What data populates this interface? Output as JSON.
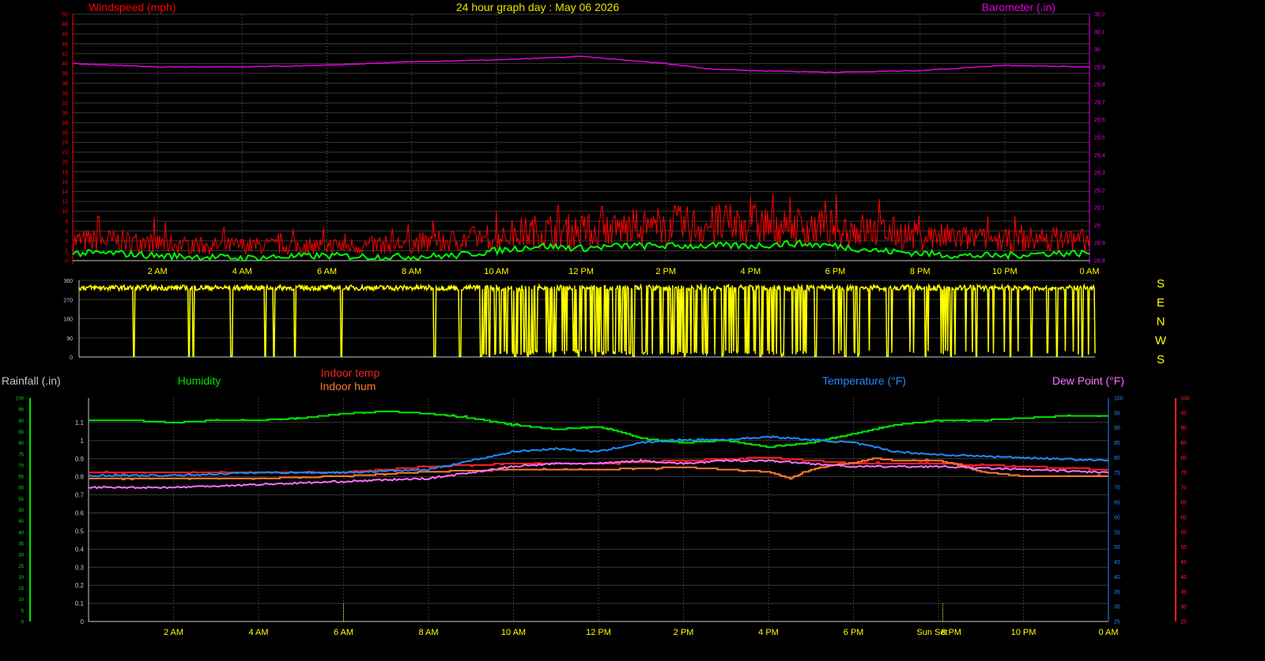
{
  "colors": {
    "background": "#000000",
    "grid": "#3a3a3a",
    "axis": "#c8c8c8",
    "windspeed": "#ff0000",
    "wind_avg": "#00ff00",
    "barometer": "#e600e6",
    "direction": "#ffff00",
    "title": "#e6e600",
    "humidity": "#00e600",
    "indoor_temp": "#ff2020",
    "indoor_hum": "#ff7a2a",
    "temperature": "#1e8cff",
    "dew_point": "#ff70ff",
    "rainfall": "#ffff00",
    "xticks": "#ffff00"
  },
  "chart_data": [
    {
      "type": "line",
      "title": "24 hour graph day : May 06 2026",
      "ylabel": "Windspeed (mph)",
      "y2label": "Barometer (.in)",
      "x_ticks": [
        "2 AM",
        "4 AM",
        "6 AM",
        "8 AM",
        "10 AM",
        "12 PM",
        "2 PM",
        "4 PM",
        "6 PM",
        "8 PM",
        "10 PM",
        "0 AM"
      ],
      "ylim": [
        0,
        50
      ],
      "y_ticks": [
        "0",
        "2",
        "4",
        "6",
        "8",
        "10",
        "12",
        "14",
        "16",
        "18",
        "20",
        "22",
        "24",
        "26",
        "28",
        "30",
        "32",
        "34",
        "36",
        "38",
        "40",
        "42",
        "44",
        "46",
        "48",
        "50"
      ],
      "y2lim": [
        28.8,
        30.2
      ],
      "y2_ticks": [
        "28.8",
        "28.9",
        "29",
        "29.1",
        "29.2",
        "29.3",
        "29.4",
        "29.5",
        "29.6",
        "29.7",
        "29.8",
        "29.9",
        "30",
        "30.1",
        "30.2"
      ],
      "series": [
        {
          "name": "Windspeed (mph)",
          "axis": "left",
          "hours": [
            0,
            1,
            2,
            3,
            4,
            5,
            6,
            7,
            8,
            9,
            10,
            11,
            12,
            13,
            14,
            15,
            16,
            17,
            18,
            19,
            20,
            21,
            22,
            23,
            24
          ],
          "values": [
            4,
            4,
            3.5,
            3,
            3,
            3,
            3,
            3,
            3.5,
            4,
            5,
            6,
            6,
            6.5,
            7,
            7,
            7.5,
            7,
            6.5,
            6,
            5,
            4.5,
            4,
            4.5,
            4
          ],
          "peaks": [
            [
              0.6,
              9
            ],
            [
              10,
              10
            ],
            [
              12.5,
              11
            ],
            [
              16,
              13
            ],
            [
              16.8,
              10
            ],
            [
              21.6,
              9
            ]
          ]
        },
        {
          "axis": "left",
          "hours": [
            0,
            1,
            2,
            3,
            4,
            5,
            6,
            7,
            8,
            9,
            10,
            11,
            12,
            13,
            14,
            15,
            16,
            17,
            18,
            19,
            20,
            21,
            22,
            23,
            24
          ],
          "values": [
            1.5,
            1.5,
            1,
            0.8,
            0.5,
            0.8,
            1,
            0.8,
            0.8,
            1,
            2,
            3,
            2.5,
            3,
            3,
            3,
            3,
            3.5,
            3,
            2,
            1.5,
            1,
            1,
            1.5,
            1.5
          ]
        },
        {
          "name": "Barometer (.in)",
          "axis": "right",
          "hours": [
            0,
            2,
            4,
            6,
            8,
            10,
            12,
            13,
            14,
            15,
            16,
            18,
            20,
            22,
            24
          ],
          "values": [
            29.92,
            29.9,
            29.9,
            29.91,
            29.93,
            29.94,
            29.96,
            29.94,
            29.92,
            29.89,
            29.88,
            29.87,
            29.88,
            29.91,
            29.9
          ]
        }
      ]
    },
    {
      "type": "line",
      "y_ticks": [
        "0",
        "90",
        "180",
        "270",
        "360"
      ],
      "ylim": [
        0,
        360
      ],
      "side_labels": [
        "S",
        "E",
        "N",
        "W",
        "S"
      ],
      "series": [
        {
          "axis": "left",
          "base": 325,
          "drop_hours": [
            1.3,
            2.6,
            2.7,
            3.6,
            4.4,
            4.6,
            5.1,
            6.2,
            8.4,
            9.0,
            9.5,
            9.7,
            10.3,
            10.6,
            11.2,
            11.8,
            12.2,
            13.1,
            14.3,
            15.2,
            16.1,
            16.6,
            17.4,
            18.1,
            18.4,
            19.1,
            20.0,
            20.6,
            21.2,
            22.0,
            22.5,
            23.1,
            23.7
          ]
        }
      ]
    },
    {
      "type": "line",
      "x_ticks": [
        "2 AM",
        "4 AM",
        "6 AM",
        "8 AM",
        "10 AM",
        "12 PM",
        "2 PM",
        "4 PM",
        "6 PM",
        "Sun Set",
        "8 PM",
        "10 PM",
        "0 AM"
      ],
      "y_ticks": [
        "0",
        "0.1",
        "0.2",
        "0.3",
        "0.4",
        "0.5",
        "0.6",
        "0.7",
        "0.8",
        "0.9",
        "1",
        "1.1"
      ],
      "ylim": [
        0,
        1.2
      ],
      "y_left2_ticks": [
        "0",
        "5",
        "10",
        "15",
        "20",
        "25",
        "30",
        "35",
        "40",
        "45",
        "50",
        "55",
        "60",
        "65",
        "70",
        "75",
        "80",
        "85",
        "90",
        "95",
        "100"
      ],
      "y2_ticks": [
        "25",
        "30",
        "35",
        "40",
        "45",
        "50",
        "55",
        "60",
        "65",
        "70",
        "75",
        "80",
        "85",
        "90",
        "95",
        "100"
      ],
      "y2lim": [
        25,
        100
      ],
      "y3_ticks": [
        "25",
        "30",
        "35",
        "40",
        "45",
        "50",
        "55",
        "60",
        "65",
        "70",
        "75",
        "80",
        "85",
        "90",
        "95",
        "100"
      ],
      "legend": {
        "rainfall": "Rainfall (.in)",
        "humidity": "Humidity",
        "indoor_temp": "Indoor temp",
        "indoor_hum": "Indoor hum",
        "temperature": "Temperature (°F)",
        "dew_point": "Dew Point (°F)"
      },
      "series": [
        {
          "name": "Humidity",
          "hours": [
            0,
            1,
            2,
            3,
            4,
            5,
            6,
            7,
            8,
            9,
            10,
            11,
            12,
            12.5,
            13,
            14,
            15,
            16,
            16.5,
            17,
            17.5,
            18,
            19,
            20,
            21,
            22,
            23,
            24
          ],
          "values": [
            90,
            90,
            89,
            90,
            90,
            91,
            93,
            94,
            93,
            91,
            88,
            86,
            87,
            85,
            82,
            80,
            81,
            78,
            79,
            80,
            82,
            84,
            88,
            90,
            90,
            91,
            92,
            92
          ]
        },
        {
          "name": "Indoor temp",
          "hours": [
            0,
            2,
            4,
            6,
            8,
            10,
            12,
            14,
            16,
            18,
            20,
            22,
            24
          ],
          "values": [
            75,
            75,
            75,
            75,
            77,
            78,
            78,
            79,
            80,
            78,
            78,
            77,
            76
          ]
        },
        {
          "name": "Indoor hum",
          "hours": [
            0,
            2,
            4,
            6,
            8,
            10,
            12,
            14,
            16,
            16.5,
            17,
            17.5,
            18,
            18.5,
            19,
            20,
            20.5,
            21,
            22,
            24
          ],
          "values": [
            64,
            64,
            64,
            65,
            67,
            68,
            68,
            69,
            67,
            64,
            68,
            70,
            71,
            73,
            72,
            72,
            70,
            67,
            65,
            65
          ]
        },
        {
          "name": "Temperature (°F)",
          "hours": [
            0,
            2,
            4,
            6,
            8,
            9,
            10,
            11,
            12,
            13,
            14,
            15,
            16,
            17,
            18,
            19,
            20,
            22,
            24
          ],
          "values": [
            74,
            74,
            75,
            75,
            76,
            79,
            82,
            83,
            82,
            85,
            86,
            86,
            87,
            86,
            85,
            82,
            81,
            80,
            79
          ]
        },
        {
          "name": "Dew Point (°F)",
          "hours": [
            0,
            2,
            4,
            6,
            8,
            9,
            10,
            11,
            12,
            13,
            14,
            15,
            16,
            17,
            18,
            19,
            20,
            22,
            24
          ],
          "values": [
            70,
            70,
            71,
            72,
            73,
            75,
            77,
            78,
            78,
            79,
            78,
            79,
            79,
            78,
            77,
            77,
            77,
            76,
            75
          ]
        },
        {
          "name": "Rainfall (.in)",
          "hours": [
            6,
            20.1
          ],
          "values": [
            0.1,
            0.1
          ]
        }
      ]
    }
  ]
}
